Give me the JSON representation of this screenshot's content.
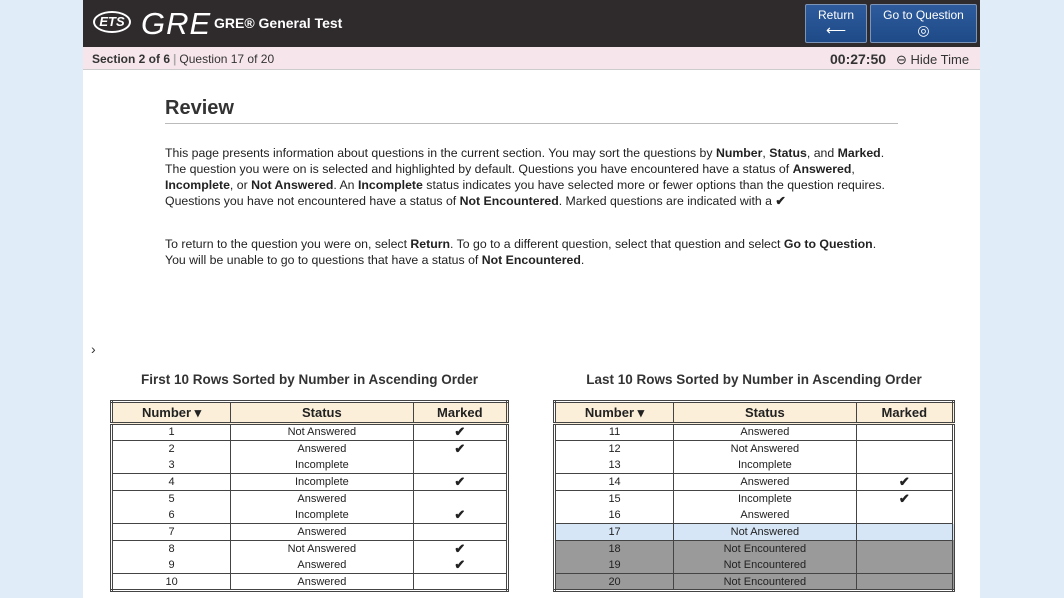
{
  "header": {
    "logo_ets": "ETS",
    "logo_gre": "GRE",
    "title": "GRE® General Test",
    "return_label": "Return",
    "return_icon": "arrow-left-icon",
    "goto_label": "Go to Question",
    "goto_icon": "target-icon"
  },
  "status_bar": {
    "section": "Section 2 of 6",
    "question": "Question 17 of 20",
    "timer": "00:27:50",
    "hide_time": "Hide Time"
  },
  "review": {
    "title": "Review",
    "p1": [
      "This page presents information about questions in the current section. You may sort the questions by ",
      "Number",
      ", ",
      "Status",
      ", and ",
      "Marked",
      ". The question you were on is selected and highlighted by default. Questions you have encountered have a status of ",
      "Answered",
      ", ",
      "Incomplete",
      ", or ",
      "Not Answered",
      ". An ",
      "Incomplete",
      " status indicates you have selected more or fewer options than the question requires. Questions you have not encountered have a status of ",
      "Not Encountered",
      ". Marked questions are indicated with a ",
      "✔"
    ],
    "p2": [
      "To return to the question you were on, select ",
      "Return",
      ". To go to a different question, select that question and select ",
      "Go to Question",
      ". You will be unable to go to questions that have a status of ",
      "Not Encountered",
      "."
    ]
  },
  "columns": {
    "number": "Number",
    "status": "Status",
    "marked": "Marked"
  },
  "left_table": {
    "title": "First 10 Rows Sorted by Number in Ascending Order",
    "rows": [
      {
        "n": "1",
        "s": "Not Answered",
        "m": true
      },
      {
        "n": "2",
        "s": "Answered",
        "m": true
      },
      {
        "n": "3",
        "s": "Incomplete",
        "m": false
      },
      {
        "n": "4",
        "s": "Incomplete",
        "m": true
      },
      {
        "n": "5",
        "s": "Answered",
        "m": false
      },
      {
        "n": "6",
        "s": "Incomplete",
        "m": true
      },
      {
        "n": "7",
        "s": "Answered",
        "m": false
      },
      {
        "n": "8",
        "s": "Not Answered",
        "m": true
      },
      {
        "n": "9",
        "s": "Answered",
        "m": true
      },
      {
        "n": "10",
        "s": "Answered",
        "m": false
      }
    ]
  },
  "right_table": {
    "title": "Last 10 Rows Sorted by Number in Ascending Order",
    "rows": [
      {
        "n": "11",
        "s": "Answered",
        "m": false
      },
      {
        "n": "12",
        "s": "Not Answered",
        "m": false
      },
      {
        "n": "13",
        "s": "Incomplete",
        "m": false
      },
      {
        "n": "14",
        "s": "Answered",
        "m": true
      },
      {
        "n": "15",
        "s": "Incomplete",
        "m": true
      },
      {
        "n": "16",
        "s": "Answered",
        "m": false
      },
      {
        "n": "17",
        "s": "Not Answered",
        "m": false,
        "selected": true
      },
      {
        "n": "18",
        "s": "Not Encountered",
        "m": false
      },
      {
        "n": "19",
        "s": "Not Encountered",
        "m": false
      },
      {
        "n": "20",
        "s": "Not Encountered",
        "m": false
      }
    ]
  },
  "check_mark": "✔",
  "colors": {
    "header_bg": "#2f2b2d",
    "button_bg": "#2e5b9c",
    "selected_row": "#d6e6f6",
    "not_encountered_row": "#9a9a9a",
    "table_header_bg": "#fbefd9"
  }
}
